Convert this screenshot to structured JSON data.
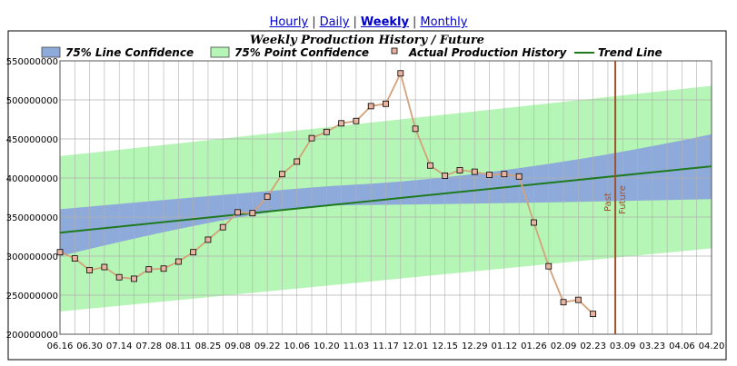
{
  "nav": {
    "links": [
      "Hourly",
      "Daily",
      "Weekly",
      "Monthly"
    ],
    "active": "Weekly"
  },
  "chart_data": {
    "type": "line",
    "title": "Weekly Production History / Future",
    "legend": [
      {
        "label": "75% Line Confidence",
        "color": "#8eaadb",
        "kind": "box"
      },
      {
        "label": "75% Point Confidence",
        "color": "#b5f5b5",
        "kind": "box"
      },
      {
        "label": "Actual Production History",
        "color": "#e8b4a2",
        "kind": "marker"
      },
      {
        "label": "Trend Line",
        "color": "#1f7a1f",
        "kind": "line"
      }
    ],
    "legend_position": "top",
    "x_ticks": [
      "06.16",
      "06.30",
      "07.14",
      "07.28",
      "08.11",
      "08.25",
      "09.08",
      "09.22",
      "10.06",
      "10.20",
      "11.03",
      "11.17",
      "12.01",
      "12.15",
      "12.29",
      "01.12",
      "01.26",
      "02.09",
      "02.23",
      "03.09",
      "03.23",
      "04.06",
      "04.20"
    ],
    "x_range_weeks": [
      0,
      44
    ],
    "y_ticks": [
      200000000,
      250000000,
      300000000,
      350000000,
      400000000,
      450000000,
      500000000,
      550000000
    ],
    "y_tick_labels": [
      "200000000",
      "250000000",
      "300000000",
      "350000000",
      "400000000",
      "450000000",
      "500000000",
      "550000000"
    ],
    "ylim": [
      200000000,
      550000000
    ],
    "grid": true,
    "actual": [
      305000000,
      297000000,
      282000000,
      286000000,
      273000000,
      271000000,
      283000000,
      284000000,
      293000000,
      305000000,
      321000000,
      337000000,
      356000000,
      355000000,
      376000000,
      405000000,
      421000000,
      451000000,
      459000000,
      470000000,
      473000000,
      492000000,
      495000000,
      534000000,
      463000000,
      416000000,
      403000000,
      410000000,
      408000000,
      404000000,
      405000000,
      402000000,
      343000000,
      287000000,
      241000000,
      244000000,
      226000000
    ],
    "trend": {
      "start": 330000000,
      "end": 415000000
    },
    "line_conf": {
      "start_upper": 360000000,
      "start_lower": 300000000,
      "mid_upper": 390000000,
      "mid_lower": 365000000,
      "end_upper": 456000000,
      "end_lower": 373000000
    },
    "point_conf": {
      "start_upper": 428000000,
      "start_lower": 229000000,
      "end_upper": 518000000,
      "end_lower": 310000000
    },
    "divider_week": 37.5,
    "divider_labels": [
      "Past",
      "Future"
    ],
    "colors": {
      "line_conf": "#8eaadb",
      "point_conf": "#b5f5b5",
      "actual_line": "#d4a27a",
      "actual_marker_fill": "#e8b4a2",
      "trend": "#1f7a1f",
      "divider": "#a0522d"
    }
  }
}
